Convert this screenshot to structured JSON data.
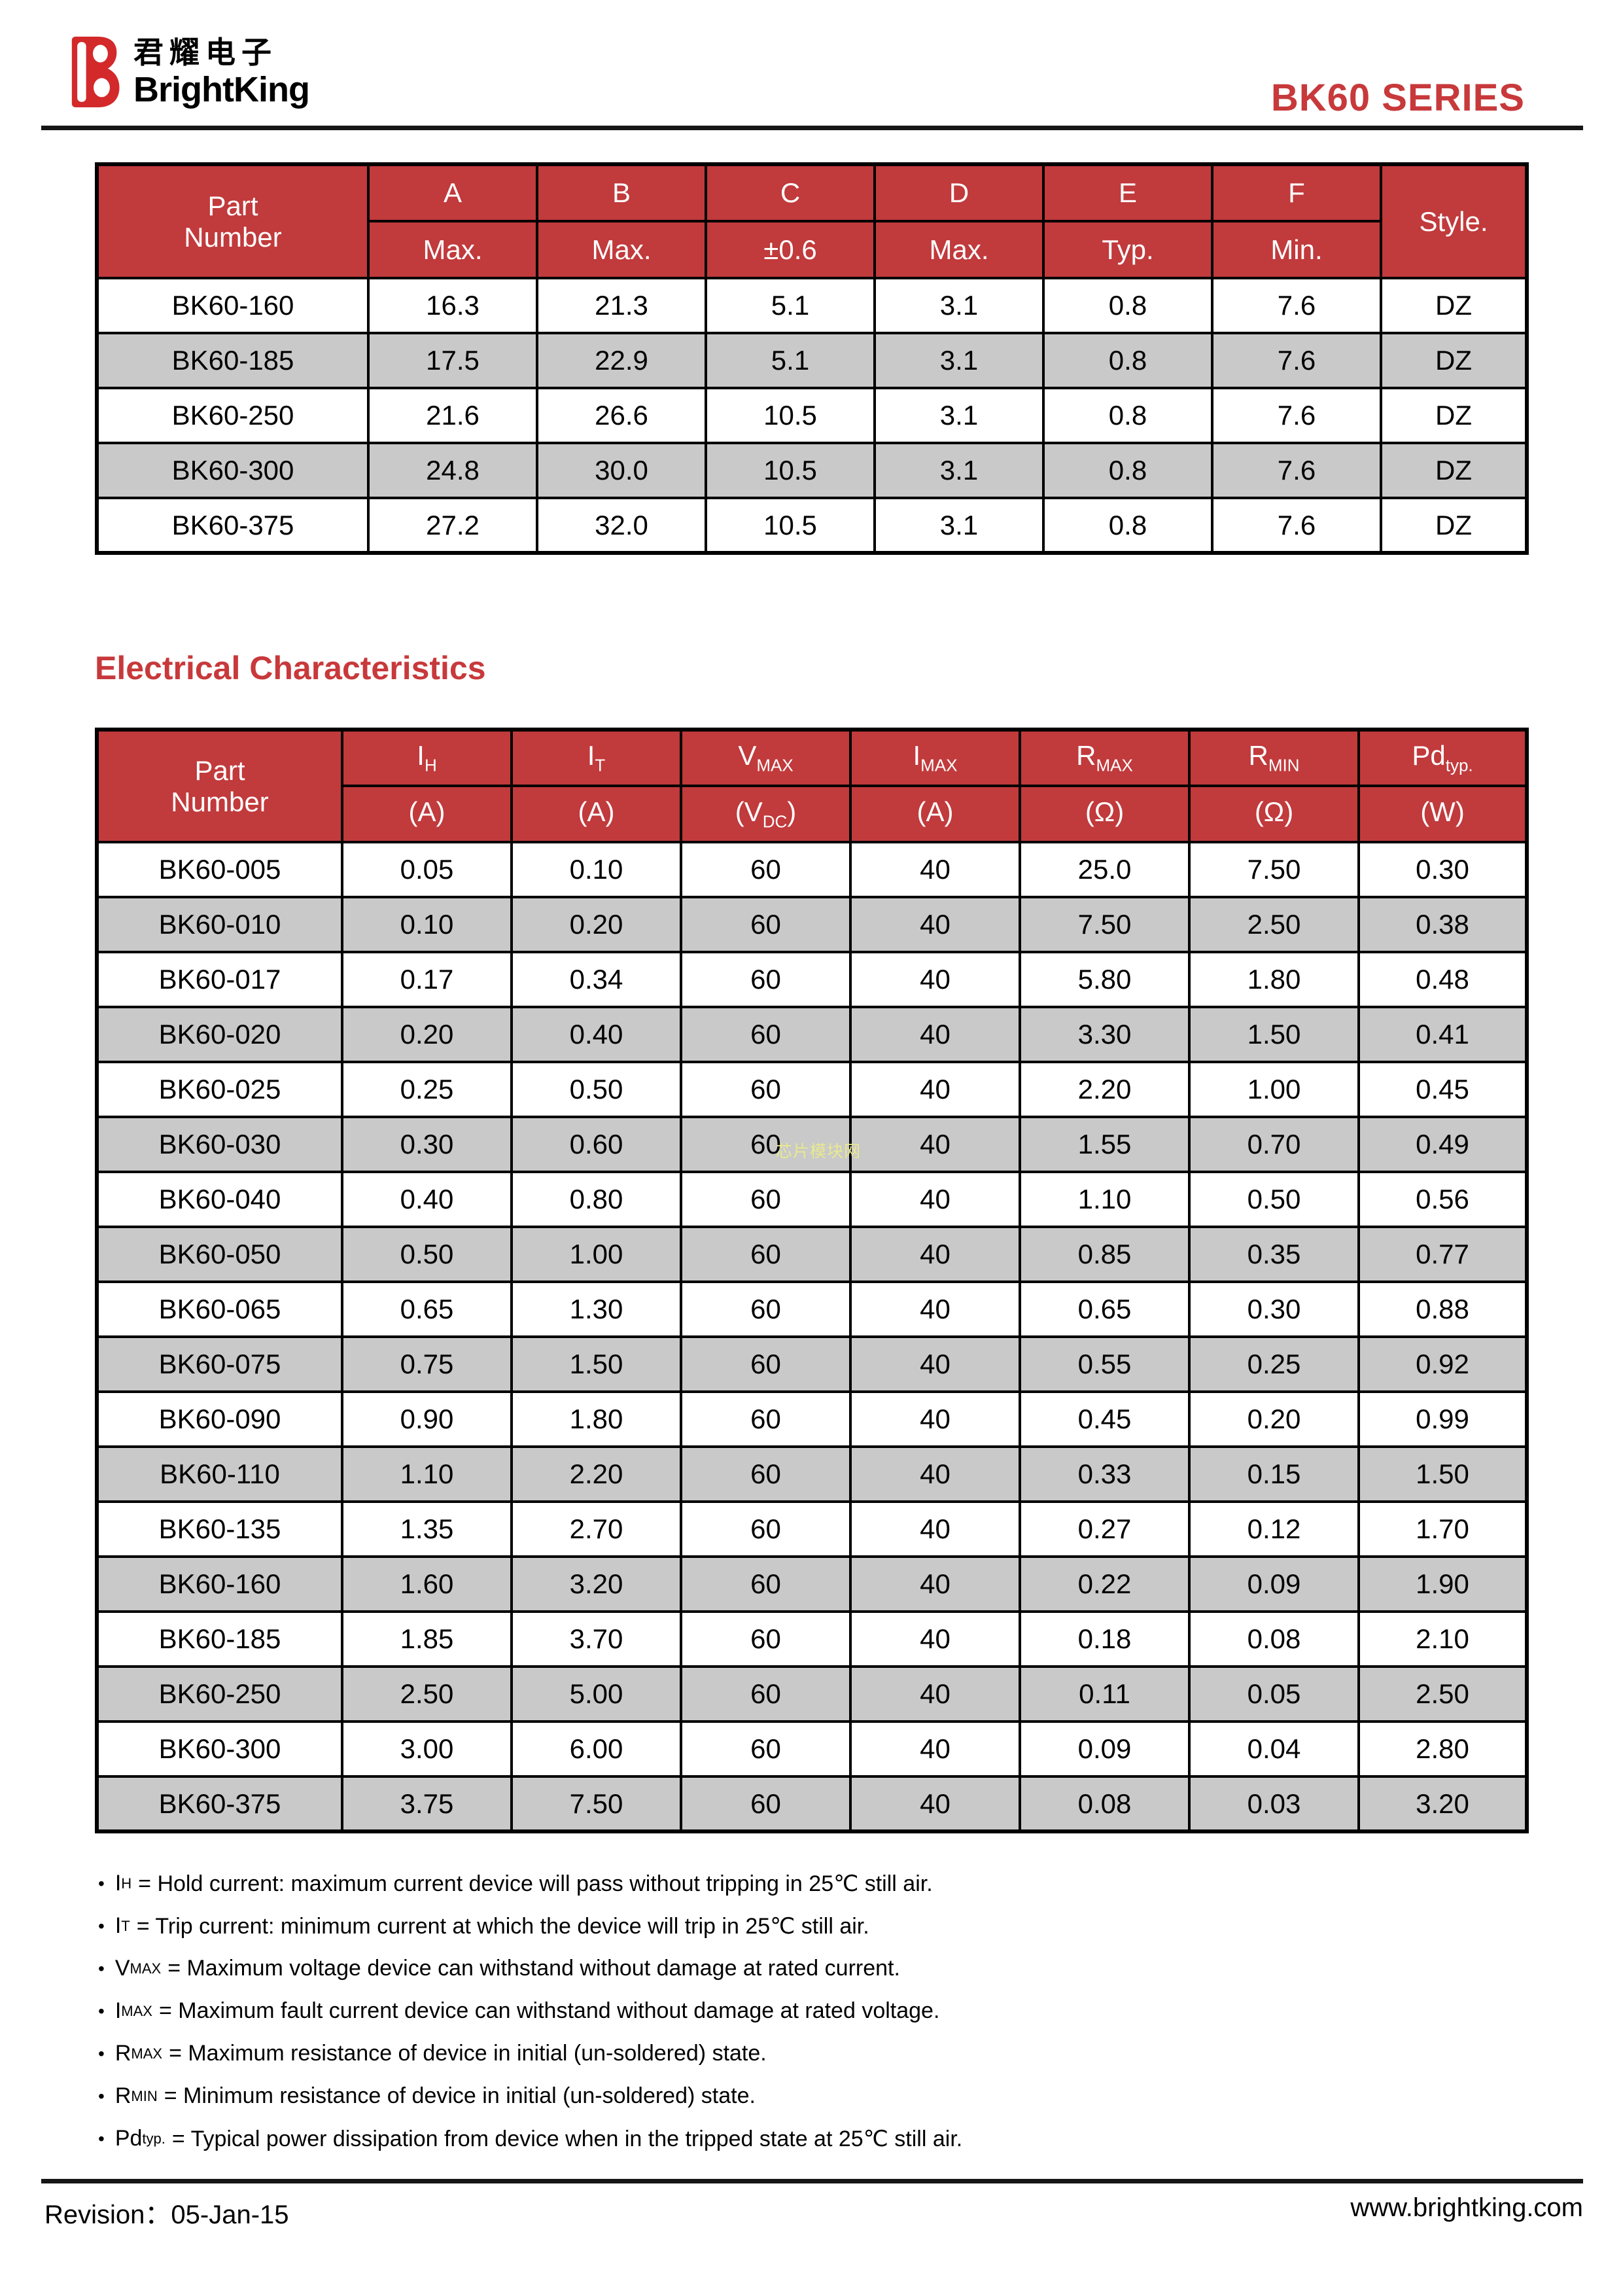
{
  "page": {
    "brand_cn": "君耀电子",
    "brand_en": "BrightKing",
    "series": "BK60 SERIES"
  },
  "dimensions_table": {
    "part_header_line1": "Part",
    "part_header_line2": "Number",
    "style_header": "Style.",
    "columns": [
      "A",
      "B",
      "C",
      "D",
      "E",
      "F"
    ],
    "tolerances": [
      "Max.",
      "Max.",
      "±0.6",
      "Max.",
      "Typ.",
      "Min."
    ],
    "rows": [
      {
        "part": "BK60-160",
        "values": [
          "16.3",
          "21.3",
          "5.1",
          "3.1",
          "0.8",
          "7.6"
        ],
        "style": "DZ"
      },
      {
        "part": "BK60-185",
        "values": [
          "17.5",
          "22.9",
          "5.1",
          "3.1",
          "0.8",
          "7.6"
        ],
        "style": "DZ"
      },
      {
        "part": "BK60-250",
        "values": [
          "21.6",
          "26.6",
          "10.5",
          "3.1",
          "0.8",
          "7.6"
        ],
        "style": "DZ"
      },
      {
        "part": "BK60-300",
        "values": [
          "24.8",
          "30.0",
          "10.5",
          "3.1",
          "0.8",
          "7.6"
        ],
        "style": "DZ"
      },
      {
        "part": "BK60-375",
        "values": [
          "27.2",
          "32.0",
          "10.5",
          "3.1",
          "0.8",
          "7.6"
        ],
        "style": "DZ"
      }
    ]
  },
  "section_title": "Electrical Characteristics",
  "electrical_table": {
    "part_header_line1": "Part",
    "part_header_line2": "Number",
    "columns": [
      {
        "sym": "I",
        "sub": "H",
        "unit_pre": "(A)",
        "unit_sub": "",
        "unit_post": ""
      },
      {
        "sym": "I",
        "sub": "T",
        "unit_pre": "(A)",
        "unit_sub": "",
        "unit_post": ""
      },
      {
        "sym": "V",
        "sub": "MAX",
        "unit_pre": "(V",
        "unit_sub": "DC",
        "unit_post": ")"
      },
      {
        "sym": "I",
        "sub": "MAX",
        "unit_pre": "(A)",
        "unit_sub": "",
        "unit_post": ""
      },
      {
        "sym": "R",
        "sub": "MAX",
        "unit_pre": "(Ω)",
        "unit_sub": "",
        "unit_post": ""
      },
      {
        "sym": "R",
        "sub": "MIN",
        "unit_pre": "(Ω)",
        "unit_sub": "",
        "unit_post": ""
      },
      {
        "sym": "Pd",
        "sub": "typ.",
        "unit_pre": "(W)",
        "unit_sub": "",
        "unit_post": ""
      }
    ],
    "rows": [
      {
        "part": "BK60-005",
        "values": [
          "0.05",
          "0.10",
          "60",
          "40",
          "25.0",
          "7.50",
          "0.30"
        ]
      },
      {
        "part": "BK60-010",
        "values": [
          "0.10",
          "0.20",
          "60",
          "40",
          "7.50",
          "2.50",
          "0.38"
        ]
      },
      {
        "part": "BK60-017",
        "values": [
          "0.17",
          "0.34",
          "60",
          "40",
          "5.80",
          "1.80",
          "0.48"
        ]
      },
      {
        "part": "BK60-020",
        "values": [
          "0.20",
          "0.40",
          "60",
          "40",
          "3.30",
          "1.50",
          "0.41"
        ]
      },
      {
        "part": "BK60-025",
        "values": [
          "0.25",
          "0.50",
          "60",
          "40",
          "2.20",
          "1.00",
          "0.45"
        ]
      },
      {
        "part": "BK60-030",
        "values": [
          "0.30",
          "0.60",
          "60",
          "40",
          "1.55",
          "0.70",
          "0.49"
        ]
      },
      {
        "part": "BK60-040",
        "values": [
          "0.40",
          "0.80",
          "60",
          "40",
          "1.10",
          "0.50",
          "0.56"
        ]
      },
      {
        "part": "BK60-050",
        "values": [
          "0.50",
          "1.00",
          "60",
          "40",
          "0.85",
          "0.35",
          "0.77"
        ]
      },
      {
        "part": "BK60-065",
        "values": [
          "0.65",
          "1.30",
          "60",
          "40",
          "0.65",
          "0.30",
          "0.88"
        ]
      },
      {
        "part": "BK60-075",
        "values": [
          "0.75",
          "1.50",
          "60",
          "40",
          "0.55",
          "0.25",
          "0.92"
        ]
      },
      {
        "part": "BK60-090",
        "values": [
          "0.90",
          "1.80",
          "60",
          "40",
          "0.45",
          "0.20",
          "0.99"
        ]
      },
      {
        "part": "BK60-110",
        "values": [
          "1.10",
          "2.20",
          "60",
          "40",
          "0.33",
          "0.15",
          "1.50"
        ]
      },
      {
        "part": "BK60-135",
        "values": [
          "1.35",
          "2.70",
          "60",
          "40",
          "0.27",
          "0.12",
          "1.70"
        ]
      },
      {
        "part": "BK60-160",
        "values": [
          "1.60",
          "3.20",
          "60",
          "40",
          "0.22",
          "0.09",
          "1.90"
        ]
      },
      {
        "part": "BK60-185",
        "values": [
          "1.85",
          "3.70",
          "60",
          "40",
          "0.18",
          "0.08",
          "2.10"
        ]
      },
      {
        "part": "BK60-250",
        "values": [
          "2.50",
          "5.00",
          "60",
          "40",
          "0.11",
          "0.05",
          "2.50"
        ]
      },
      {
        "part": "BK60-300",
        "values": [
          "3.00",
          "6.00",
          "60",
          "40",
          "0.09",
          "0.04",
          "2.80"
        ]
      },
      {
        "part": "BK60-375",
        "values": [
          "3.75",
          "7.50",
          "60",
          "40",
          "0.08",
          "0.03",
          "3.20"
        ]
      }
    ]
  },
  "watermark": "芯片模块网",
  "bullet": "•",
  "notes": [
    {
      "sym": "I",
      "sub": "H",
      "text": "= Hold current: maximum current device will pass without tripping in 25℃ still air."
    },
    {
      "sym": "I",
      "sub": "T",
      "text": "= Trip current: minimum current at which the device will trip in 25℃ still air."
    },
    {
      "sym": "V",
      "sub": "MAX",
      "text": "= Maximum voltage device can withstand without damage at rated current."
    },
    {
      "sym": "I",
      "sub": "MAX",
      "text": "= Maximum fault current device can withstand without damage at rated voltage."
    },
    {
      "sym": "R",
      "sub": "MAX",
      "text": "= Maximum resistance of device in initial (un-soldered) state."
    },
    {
      "sym": "R",
      "sub": "MIN",
      "text": "= Minimum resistance of device in initial (un-soldered) state."
    },
    {
      "sym": "Pd",
      "sub": "typ.",
      "text": "= Typical power dissipation from device when in the tripped state at 25℃ still air."
    }
  ],
  "footer": {
    "revision_label": "Revision：",
    "revision_date": "05-Jan-15",
    "website": "www.brightking.com"
  },
  "colors": {
    "header_red": "#C13A3C",
    "title_red": "#C8393B",
    "logo_red": "#D3292B",
    "row_gray": "#C9C9C9",
    "watermark_yellow": "#E9E98F"
  }
}
